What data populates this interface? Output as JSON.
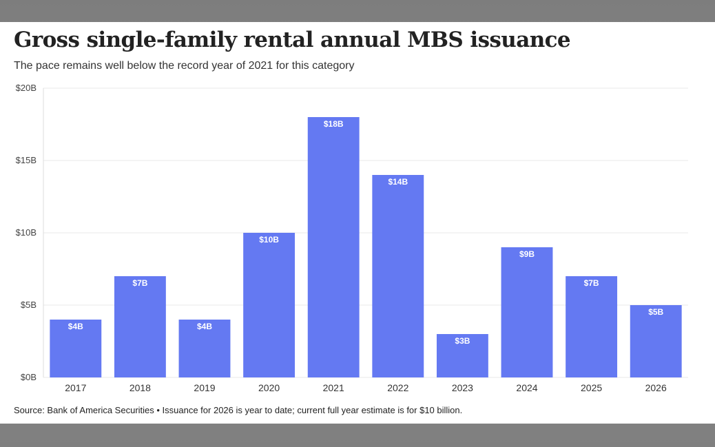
{
  "header": {
    "title": "Gross single-family rental annual MBS issuance",
    "subtitle": "The pace remains well below the record year of 2021 for this category"
  },
  "footer": {
    "source": "Source: Bank of America Securities • Issuance for 2026 is year to date; current full year estimate is for $10 billion."
  },
  "colors": {
    "bar": "#6479f2",
    "grid": "#e8e8e8"
  },
  "chart_data": {
    "type": "bar",
    "title": "Gross single-family rental annual MBS issuance",
    "subtitle": "The pace remains well below the record year of 2021 for this category",
    "categories": [
      "2017",
      "2018",
      "2019",
      "2020",
      "2021",
      "2022",
      "2023",
      "2024",
      "2025",
      "2026"
    ],
    "values": [
      4,
      7,
      4,
      10,
      18,
      14,
      3,
      9,
      7,
      5
    ],
    "data_labels": [
      "$4B",
      "$7B",
      "$4B",
      "$10B",
      "$18B",
      "$14B",
      "$3B",
      "$9B",
      "$7B",
      "$5B"
    ],
    "yticks": [
      0,
      5,
      10,
      15,
      20
    ],
    "ytick_labels": [
      "$0B",
      "$5B",
      "$10B",
      "$15B",
      "$20B"
    ],
    "ylim": [
      0,
      20
    ],
    "xlabel": "",
    "ylabel": "",
    "grid": true,
    "legend": "none"
  }
}
